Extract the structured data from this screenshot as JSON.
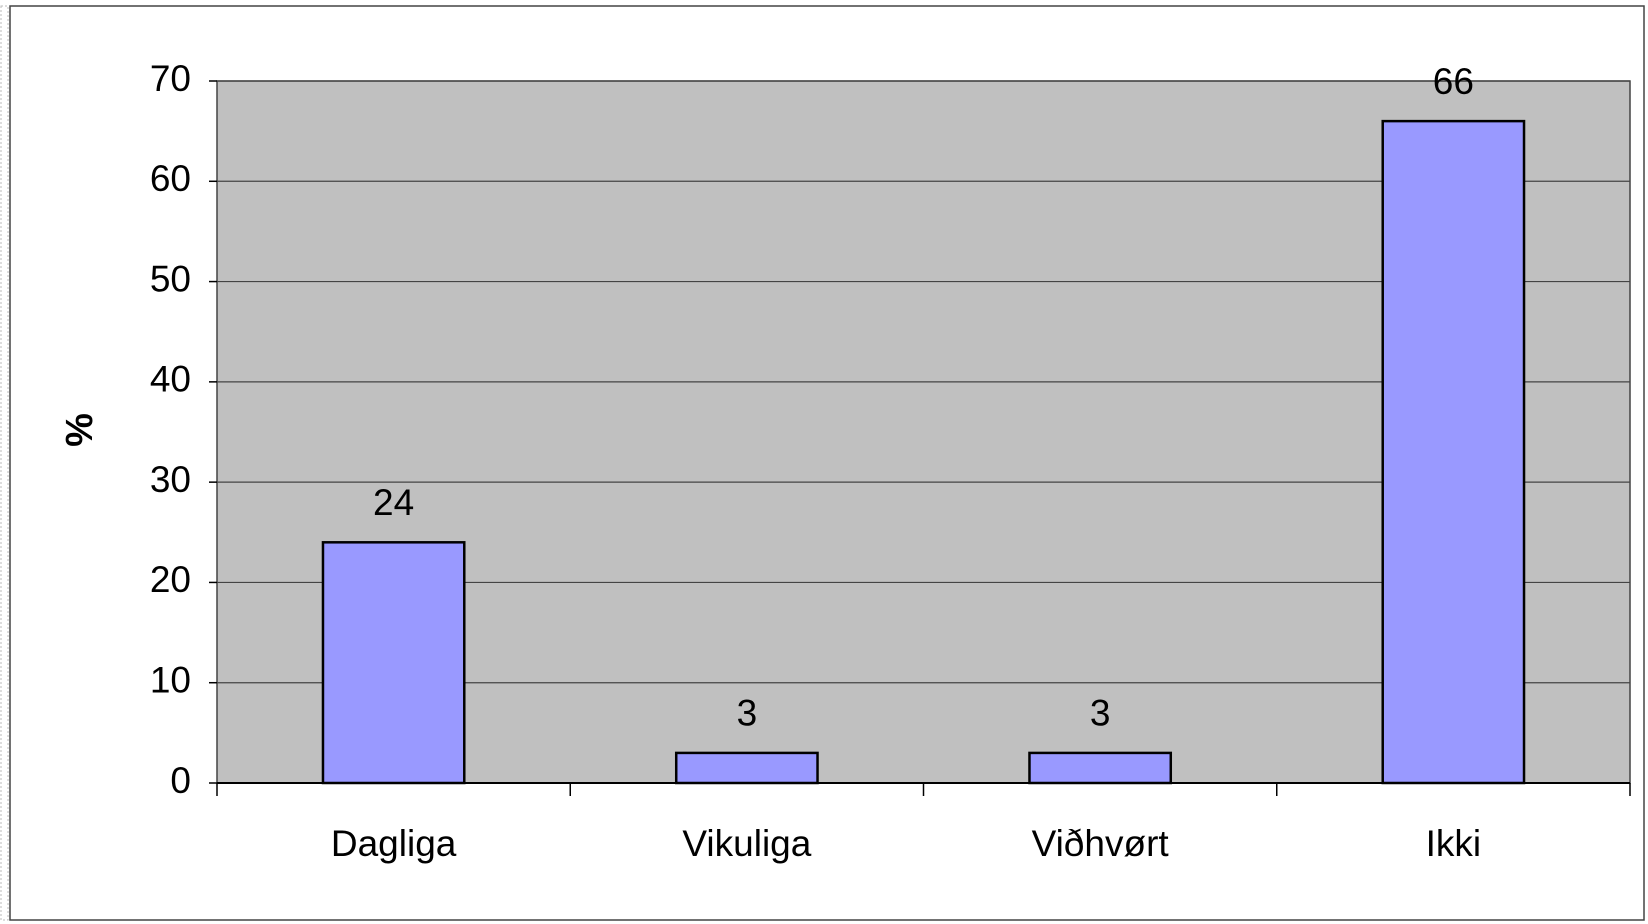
{
  "chart_data": {
    "type": "bar",
    "y_label": "%",
    "categories": [
      "Dagliga",
      "Vikuliga",
      "Viðhvørt",
      "Ikki"
    ],
    "values": [
      24,
      3,
      3,
      66
    ],
    "color": "#9999ff",
    "ylim": [
      0,
      70
    ],
    "yticks": [
      0,
      10,
      20,
      30,
      40,
      50,
      60,
      70
    ],
    "grid": true
  }
}
